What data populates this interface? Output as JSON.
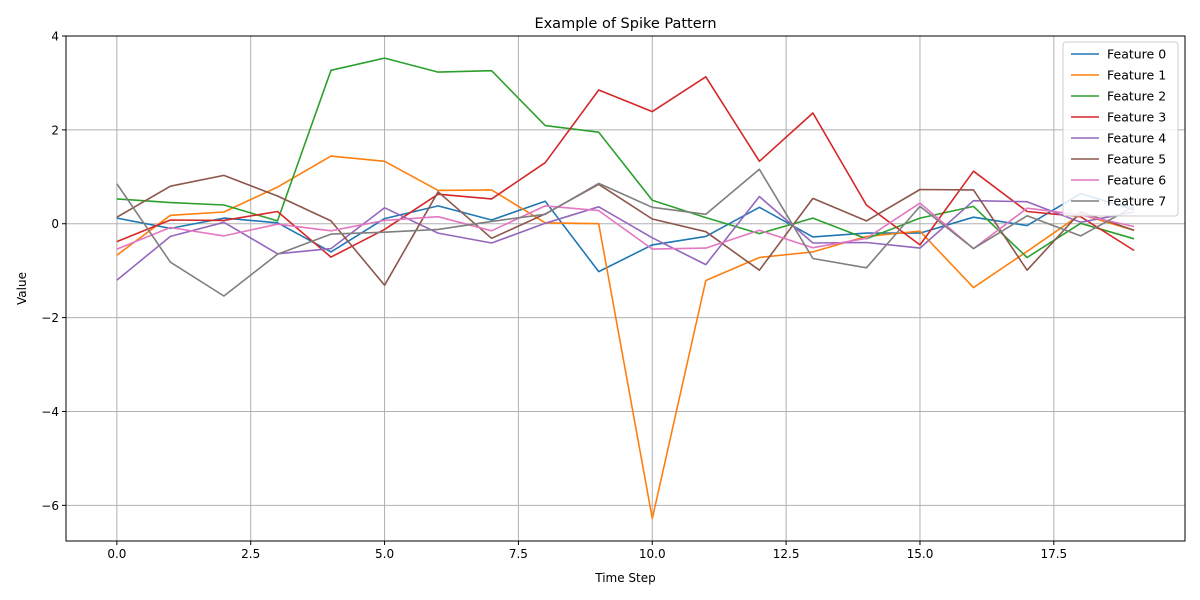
{
  "chart_data": {
    "type": "line",
    "title": "Example of Spike Pattern",
    "xlabel": "Time Step",
    "ylabel": "Value",
    "xlim": [
      -0.95,
      19.95
    ],
    "ylim": [
      -6.76,
      4.0
    ],
    "xticks": [
      0.0,
      2.5,
      5.0,
      7.5,
      10.0,
      12.5,
      15.0,
      17.5
    ],
    "xtick_labels": [
      "0.0",
      "2.5",
      "5.0",
      "7.5",
      "10.0",
      "12.5",
      "15.0",
      "17.5"
    ],
    "yticks": [
      -6,
      -4,
      -2,
      0,
      2,
      4
    ],
    "ytick_labels": [
      "−6",
      "−4",
      "−2",
      "0",
      "2",
      "4"
    ],
    "grid": true,
    "legend_position": "top-right",
    "x": [
      0,
      1,
      2,
      3,
      4,
      5,
      6,
      7,
      8,
      9,
      10,
      11,
      12,
      13,
      14,
      15,
      16,
      17,
      18,
      19
    ],
    "series": [
      {
        "name": "Feature 0",
        "color": "#1f77b4",
        "values": [
          0.12,
          -0.1,
          0.12,
          0.02,
          -0.6,
          0.11,
          0.38,
          0.08,
          0.48,
          -1.02,
          -0.45,
          -0.27,
          0.35,
          -0.28,
          -0.2,
          -0.2,
          0.14,
          -0.04,
          0.64,
          0.3
        ]
      },
      {
        "name": "Feature 1",
        "color": "#ff7f0e",
        "values": [
          -0.67,
          0.18,
          0.25,
          0.78,
          1.44,
          1.33,
          0.71,
          0.72,
          0.02,
          0.0,
          -6.28,
          -1.21,
          -0.72,
          -0.6,
          -0.27,
          -0.16,
          -1.36,
          -0.59,
          0.2,
          -0.14
        ]
      },
      {
        "name": "Feature 2",
        "color": "#2ca02c",
        "values": [
          0.53,
          0.45,
          0.4,
          0.06,
          3.27,
          3.53,
          3.23,
          3.26,
          2.09,
          1.95,
          0.5,
          0.13,
          -0.21,
          0.12,
          -0.32,
          0.12,
          0.37,
          -0.72,
          0.01,
          -0.32
        ]
      },
      {
        "name": "Feature 3",
        "color": "#d62728",
        "values": [
          -0.38,
          0.08,
          0.07,
          0.26,
          -0.71,
          -0.12,
          0.63,
          0.53,
          1.3,
          2.85,
          2.39,
          3.13,
          1.33,
          2.36,
          0.4,
          -0.45,
          1.12,
          0.26,
          0.15,
          -0.57
        ]
      },
      {
        "name": "Feature 4",
        "color": "#9467bd",
        "values": [
          -1.2,
          -0.27,
          0.03,
          -0.64,
          -0.53,
          0.34,
          -0.2,
          -0.41,
          0.01,
          0.36,
          -0.3,
          -0.87,
          0.58,
          -0.41,
          -0.4,
          -0.52,
          0.49,
          0.47,
          0.03,
          0.25
        ]
      },
      {
        "name": "Feature 5",
        "color": "#8c564b",
        "values": [
          0.14,
          0.8,
          1.03,
          0.59,
          0.06,
          -1.31,
          0.68,
          -0.31,
          0.21,
          0.84,
          0.1,
          -0.17,
          -0.99,
          0.54,
          0.06,
          0.73,
          0.72,
          -0.99,
          0.25,
          -0.14
        ]
      },
      {
        "name": "Feature 6",
        "color": "#e377c2",
        "values": [
          -0.54,
          -0.08,
          -0.26,
          -0.01,
          -0.15,
          0.07,
          0.15,
          -0.15,
          0.38,
          0.28,
          -0.54,
          -0.52,
          -0.14,
          -0.51,
          -0.31,
          0.44,
          -0.53,
          0.33,
          0.19,
          -0.06
        ]
      },
      {
        "name": "Feature 7",
        "color": "#7f7f7f",
        "values": [
          0.85,
          -0.82,
          -1.54,
          -0.65,
          -0.22,
          -0.18,
          -0.12,
          0.05,
          0.2,
          0.86,
          0.35,
          0.2,
          1.16,
          -0.74,
          -0.94,
          0.37,
          -0.53,
          0.17,
          -0.26,
          0.37
        ]
      }
    ]
  }
}
